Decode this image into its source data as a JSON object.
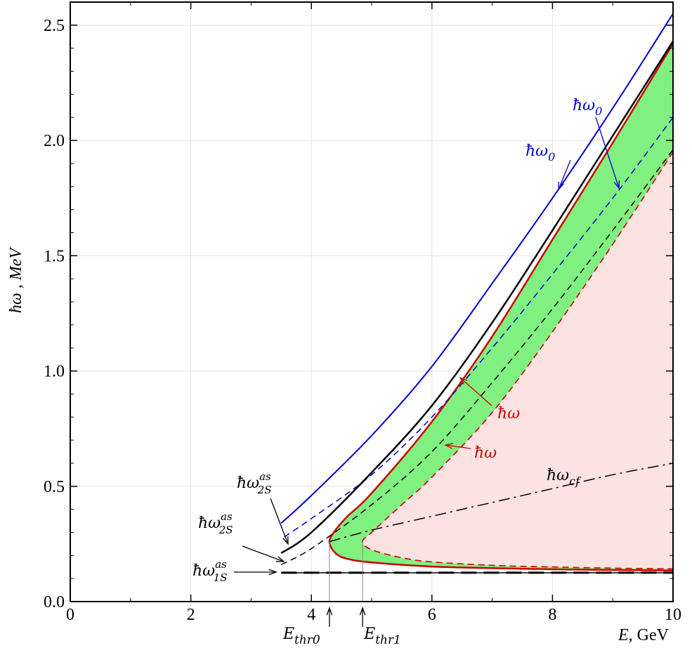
{
  "chart_data": {
    "type": "line",
    "xlabel": "E, GeV",
    "ylabel": "ħω , MeV",
    "xlim": [
      0,
      10
    ],
    "ylim": [
      0,
      2.6
    ],
    "x_ticks": [
      "0",
      "2",
      "4",
      "6",
      "8",
      "10"
    ],
    "y_ticks": [
      "0.0",
      "0.5",
      "1.0",
      "1.5",
      "2.0",
      "2.5"
    ],
    "grid": true,
    "series": [
      {
        "name": "ħω0",
        "color": "#0000cc",
        "style": "solid",
        "x": [
          3.5,
          4,
          5,
          6,
          7,
          8,
          9,
          10
        ],
        "y": [
          0.34,
          0.46,
          0.72,
          1.02,
          1.38,
          1.75,
          2.14,
          2.55
        ]
      },
      {
        "name": "ħω0",
        "color": "#0000cc",
        "style": "dashed",
        "x": [
          3.55,
          4,
          5,
          6,
          7,
          8,
          9,
          10
        ],
        "y": [
          0.28,
          0.36,
          0.55,
          0.8,
          1.1,
          1.42,
          1.75,
          2.1
        ]
      },
      {
        "name": "ħω2S as",
        "color": "#000000",
        "style": "solid",
        "x": [
          3.5,
          4,
          5,
          6,
          7,
          8,
          9,
          10
        ],
        "y": [
          0.21,
          0.3,
          0.56,
          0.85,
          1.21,
          1.61,
          2.02,
          2.43
        ]
      },
      {
        "name": "ħω2S as",
        "color": "#000000",
        "style": "dashed",
        "x": [
          3.5,
          4,
          5,
          6,
          7,
          8,
          9,
          10
        ],
        "y": [
          0.16,
          0.23,
          0.42,
          0.65,
          0.95,
          1.27,
          1.61,
          1.96
        ]
      },
      {
        "name": "ħω1S as",
        "color": "#000000",
        "style": "long-dashed",
        "x": [
          3.5,
          10
        ],
        "y": [
          0.125,
          0.125
        ]
      },
      {
        "name": "ħωcf",
        "color": "#000000",
        "style": "dashdot",
        "x": [
          4.3,
          5,
          6,
          7,
          8,
          9,
          10
        ],
        "y": [
          0.26,
          0.31,
          0.37,
          0.43,
          0.49,
          0.55,
          0.6
        ]
      }
    ],
    "regions": [
      {
        "name": "ħω",
        "color": "#cc0000",
        "fill": "#80f080",
        "style": "solid",
        "upper_x": [
          4.3,
          4.4,
          4.6,
          5,
          6,
          7,
          8,
          9,
          10
        ],
        "upper_y": [
          0.26,
          0.31,
          0.37,
          0.47,
          0.78,
          1.15,
          1.57,
          1.99,
          2.42
        ],
        "lower_x": [
          4.3,
          4.4,
          4.6,
          5,
          6,
          7,
          8,
          9,
          10
        ],
        "lower_y": [
          0.26,
          0.21,
          0.185,
          0.17,
          0.152,
          0.145,
          0.14,
          0.137,
          0.135
        ]
      },
      {
        "name": "ħω",
        "color": "#cc0000",
        "fill": "#fde2e2",
        "style": "dashed",
        "upper_x": [
          4.85,
          5,
          5.5,
          6,
          7,
          8,
          9,
          10
        ],
        "upper_y": [
          0.26,
          0.3,
          0.42,
          0.54,
          0.82,
          1.17,
          1.55,
          1.95
        ],
        "lower_x": [
          4.85,
          5,
          5.5,
          6,
          7,
          8,
          9,
          10
        ],
        "lower_y": [
          0.26,
          0.225,
          0.19,
          0.172,
          0.157,
          0.15,
          0.145,
          0.142
        ]
      }
    ],
    "annotations": {
      "w0_outer": "ħω0",
      "w0_inner": "ħω0",
      "w_outer": "ħω",
      "w_inner": "ħω",
      "wcf": "ħωcf",
      "w2s_upper": "ħω2S as",
      "w2s_lower": "ħω2S as",
      "w1s": "ħω1S as",
      "ethr0": "Ethr0",
      "ethr1": "Ethr1"
    },
    "thresholds": {
      "ethr0": 4.3,
      "ethr1": 4.85
    }
  }
}
